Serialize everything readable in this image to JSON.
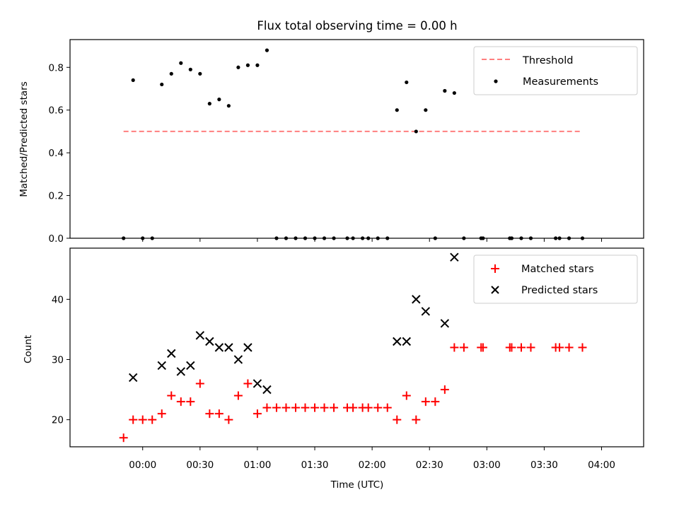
{
  "chart_data": [
    {
      "type": "scatter",
      "title": "Flux total observing time = 0.00 h",
      "xlabel": "",
      "ylabel": "Matched/Predicted stars",
      "ylim": [
        0,
        0.93
      ],
      "yticks": [
        "0.0",
        "0.2",
        "0.4",
        "0.6",
        "0.8"
      ],
      "xticks_labels_shown": false,
      "threshold": {
        "name": "Threshold",
        "value": 0.5,
        "x_start": "23:50",
        "x_end": "03:50",
        "color": "#ff7f7f"
      },
      "series": [
        {
          "name": "Measurements",
          "color": "#000000",
          "points": [
            {
              "t": "23:50",
              "v": 0.0
            },
            {
              "t": "23:55",
              "v": 0.74
            },
            {
              "t": "00:00",
              "v": 0.0
            },
            {
              "t": "00:05",
              "v": 0.0
            },
            {
              "t": "00:10",
              "v": 0.72
            },
            {
              "t": "00:15",
              "v": 0.77
            },
            {
              "t": "00:20",
              "v": 0.82
            },
            {
              "t": "00:25",
              "v": 0.79
            },
            {
              "t": "00:30",
              "v": 0.77
            },
            {
              "t": "00:35",
              "v": 0.63
            },
            {
              "t": "00:40",
              "v": 0.65
            },
            {
              "t": "00:45",
              "v": 0.62
            },
            {
              "t": "00:50",
              "v": 0.8
            },
            {
              "t": "00:55",
              "v": 0.81
            },
            {
              "t": "01:00",
              "v": 0.81
            },
            {
              "t": "01:05",
              "v": 0.88
            },
            {
              "t": "01:10",
              "v": 0.0
            },
            {
              "t": "01:15",
              "v": 0.0
            },
            {
              "t": "01:20",
              "v": 0.0
            },
            {
              "t": "01:25",
              "v": 0.0
            },
            {
              "t": "01:30",
              "v": 0.0
            },
            {
              "t": "01:35",
              "v": 0.0
            },
            {
              "t": "01:40",
              "v": 0.0
            },
            {
              "t": "01:47",
              "v": 0.0
            },
            {
              "t": "01:50",
              "v": 0.0
            },
            {
              "t": "01:55",
              "v": 0.0
            },
            {
              "t": "01:58",
              "v": 0.0
            },
            {
              "t": "02:03",
              "v": 0.0
            },
            {
              "t": "02:08",
              "v": 0.0
            },
            {
              "t": "02:13",
              "v": 0.6
            },
            {
              "t": "02:18",
              "v": 0.73
            },
            {
              "t": "02:23",
              "v": 0.5
            },
            {
              "t": "02:28",
              "v": 0.6
            },
            {
              "t": "02:33",
              "v": 0.0
            },
            {
              "t": "02:38",
              "v": 0.69
            },
            {
              "t": "02:43",
              "v": 0.68
            },
            {
              "t": "02:48",
              "v": 0.0
            },
            {
              "t": "02:57",
              "v": 0.0
            },
            {
              "t": "02:58",
              "v": 0.0
            },
            {
              "t": "03:12",
              "v": 0.0
            },
            {
              "t": "03:13",
              "v": 0.0
            },
            {
              "t": "03:18",
              "v": 0.0
            },
            {
              "t": "03:23",
              "v": 0.0
            },
            {
              "t": "03:36",
              "v": 0.0
            },
            {
              "t": "03:38",
              "v": 0.0
            },
            {
              "t": "03:43",
              "v": 0.0
            },
            {
              "t": "03:50",
              "v": 0.0
            }
          ]
        }
      ],
      "legend": {
        "location": "top-right",
        "entries": [
          "Threshold",
          "Measurements"
        ]
      }
    },
    {
      "type": "scatter",
      "title": "",
      "xlabel": "Time (UTC)",
      "ylabel": "Count",
      "ylim": [
        15.5,
        48.5
      ],
      "yticks": [
        "20",
        "30",
        "40"
      ],
      "xticks": [
        "00:00",
        "00:30",
        "01:00",
        "01:30",
        "02:00",
        "02:30",
        "03:00",
        "03:30",
        "04:00"
      ],
      "series": [
        {
          "name": "Matched stars",
          "marker": "plus",
          "color": "#ff0000",
          "points": [
            {
              "t": "23:50",
              "v": 17
            },
            {
              "t": "23:55",
              "v": 20
            },
            {
              "t": "00:00",
              "v": 20
            },
            {
              "t": "00:05",
              "v": 20
            },
            {
              "t": "00:10",
              "v": 21
            },
            {
              "t": "00:15",
              "v": 24
            },
            {
              "t": "00:20",
              "v": 23
            },
            {
              "t": "00:25",
              "v": 23
            },
            {
              "t": "00:30",
              "v": 26
            },
            {
              "t": "00:35",
              "v": 21
            },
            {
              "t": "00:40",
              "v": 21
            },
            {
              "t": "00:45",
              "v": 20
            },
            {
              "t": "00:50",
              "v": 24
            },
            {
              "t": "00:55",
              "v": 26
            },
            {
              "t": "01:00",
              "v": 21
            },
            {
              "t": "01:05",
              "v": 22
            },
            {
              "t": "01:10",
              "v": 22
            },
            {
              "t": "01:15",
              "v": 22
            },
            {
              "t": "01:20",
              "v": 22
            },
            {
              "t": "01:25",
              "v": 22
            },
            {
              "t": "01:30",
              "v": 22
            },
            {
              "t": "01:35",
              "v": 22
            },
            {
              "t": "01:40",
              "v": 22
            },
            {
              "t": "01:47",
              "v": 22
            },
            {
              "t": "01:50",
              "v": 22
            },
            {
              "t": "01:55",
              "v": 22
            },
            {
              "t": "01:58",
              "v": 22
            },
            {
              "t": "02:03",
              "v": 22
            },
            {
              "t": "02:08",
              "v": 22
            },
            {
              "t": "02:13",
              "v": 20
            },
            {
              "t": "02:18",
              "v": 24
            },
            {
              "t": "02:23",
              "v": 20
            },
            {
              "t": "02:28",
              "v": 23
            },
            {
              "t": "02:33",
              "v": 23
            },
            {
              "t": "02:38",
              "v": 25
            },
            {
              "t": "02:43",
              "v": 32
            },
            {
              "t": "02:48",
              "v": 32
            },
            {
              "t": "02:57",
              "v": 32
            },
            {
              "t": "02:58",
              "v": 32
            },
            {
              "t": "03:12",
              "v": 32
            },
            {
              "t": "03:13",
              "v": 32
            },
            {
              "t": "03:18",
              "v": 32
            },
            {
              "t": "03:23",
              "v": 32
            },
            {
              "t": "03:36",
              "v": 32
            },
            {
              "t": "03:38",
              "v": 32
            },
            {
              "t": "03:43",
              "v": 32
            },
            {
              "t": "03:50",
              "v": 32
            }
          ]
        },
        {
          "name": "Predicted stars",
          "marker": "x",
          "color": "#000000",
          "points": [
            {
              "t": "23:55",
              "v": 27
            },
            {
              "t": "00:10",
              "v": 29
            },
            {
              "t": "00:15",
              "v": 31
            },
            {
              "t": "00:20",
              "v": 28
            },
            {
              "t": "00:25",
              "v": 29
            },
            {
              "t": "00:30",
              "v": 34
            },
            {
              "t": "00:35",
              "v": 33
            },
            {
              "t": "00:40",
              "v": 32
            },
            {
              "t": "00:45",
              "v": 32
            },
            {
              "t": "00:50",
              "v": 30
            },
            {
              "t": "00:55",
              "v": 32
            },
            {
              "t": "01:00",
              "v": 26
            },
            {
              "t": "01:05",
              "v": 25
            },
            {
              "t": "02:13",
              "v": 33
            },
            {
              "t": "02:18",
              "v": 33
            },
            {
              "t": "02:23",
              "v": 40
            },
            {
              "t": "02:28",
              "v": 38
            },
            {
              "t": "02:38",
              "v": 36
            },
            {
              "t": "02:43",
              "v": 47
            }
          ]
        }
      ],
      "legend": {
        "location": "top-right",
        "entries": [
          "Matched stars",
          "Predicted stars"
        ]
      }
    }
  ]
}
